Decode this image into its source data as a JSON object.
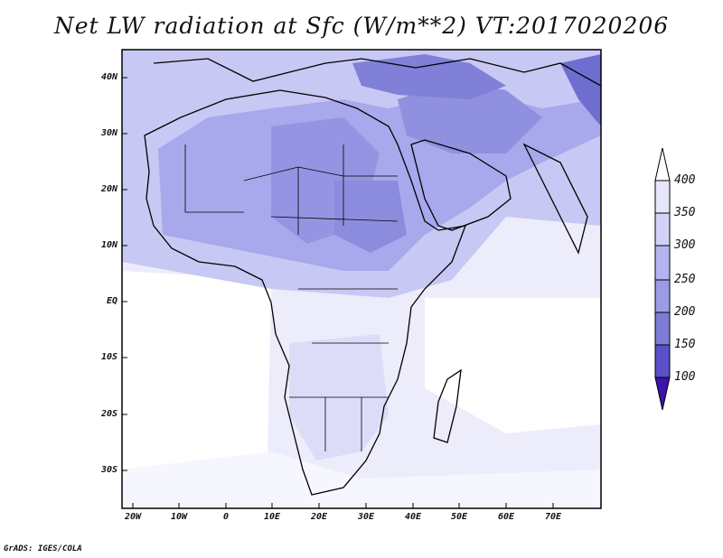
{
  "title": "Net LW radiation at Sfc (W/m**2) VT:2017020206",
  "credit": "GrADS: IGES/COLA",
  "lat_labels": [
    "40N",
    "30N",
    "20N",
    "10N",
    "EQ",
    "10S",
    "20S",
    "30S"
  ],
  "lon_labels": [
    "20W",
    "10W",
    "0",
    "10E",
    "20E",
    "30E",
    "40E",
    "50E",
    "60E",
    "70E"
  ],
  "colorbar": {
    "levels": [
      "400",
      "350",
      "300",
      "250",
      "200",
      "150",
      "100"
    ],
    "colors": [
      "#e6e6fa",
      "#d2d2f8",
      "#b4b4f0",
      "#9b9be6",
      "#7d7dd7",
      "#5a50c8",
      "#3c14aa"
    ]
  }
}
